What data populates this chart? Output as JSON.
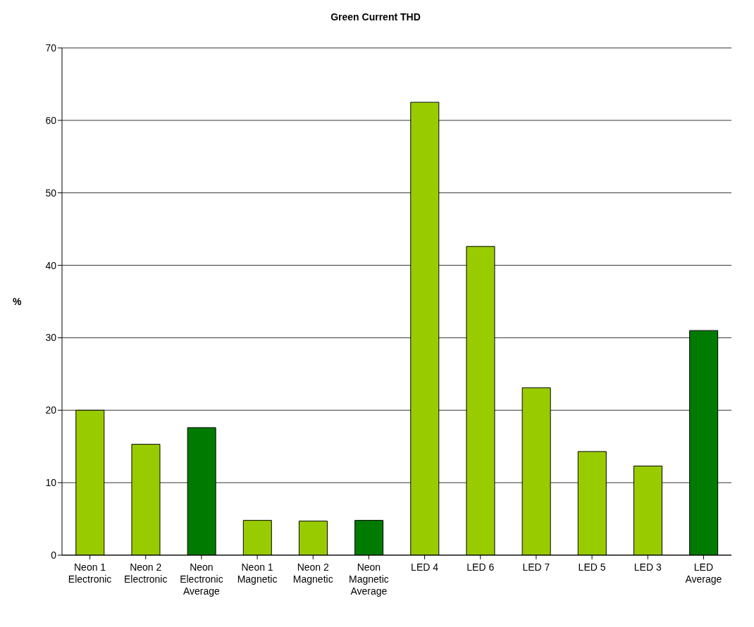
{
  "chart_data": {
    "type": "bar",
    "title": "Green Current THD",
    "ylabel": "%",
    "categories": [
      "Neon 1\nElectronic",
      "Neon 2\nElectronic",
      "Neon\nElectronic\nAverage",
      "Neon 1\nMagnetic",
      "Neon 2\nMagnetic",
      "Neon\nMagnetic\nAverage",
      "LED 4",
      "LED 6",
      "LED 7",
      "LED 5",
      "LED 3",
      "LED\nAverage"
    ],
    "values": [
      20,
      15.3,
      17.6,
      4.8,
      4.7,
      4.8,
      62.5,
      42.6,
      23.1,
      14.3,
      12.3,
      31
    ],
    "colors": [
      "#99cc00",
      "#99cc00",
      "#007a00",
      "#99cc00",
      "#99cc00",
      "#007a00",
      "#99cc00",
      "#99cc00",
      "#99cc00",
      "#99cc00",
      "#99cc00",
      "#007a00"
    ],
    "ylim": [
      0,
      70
    ],
    "yticks": [
      0,
      10,
      20,
      30,
      40,
      50,
      60,
      70
    ],
    "grid": "y"
  }
}
